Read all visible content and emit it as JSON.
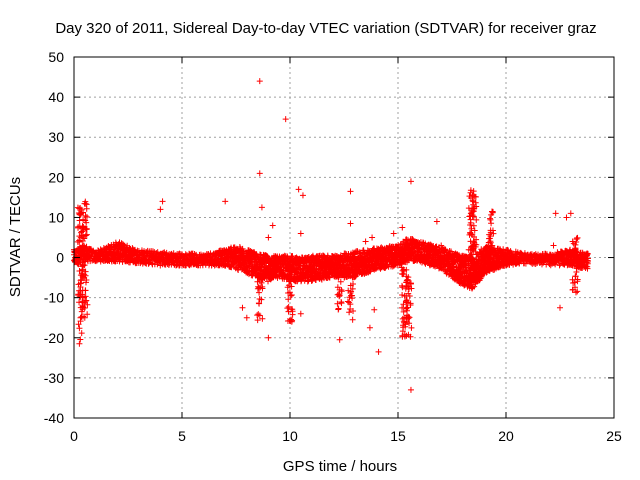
{
  "chart_data": {
    "type": "scatter",
    "title": "Day 320 of 2011, Sidereal Day-to-day VTEC variation (SDTVAR) for receiver graz",
    "xlabel": "GPS time / hours",
    "ylabel": "SDTVAR / TECUs",
    "xlim": [
      0,
      25
    ],
    "ylim": [
      -40,
      50
    ],
    "xticks": [
      0,
      5,
      10,
      15,
      20,
      25
    ],
    "yticks": [
      -40,
      -30,
      -20,
      -10,
      0,
      10,
      20,
      30,
      40,
      50
    ],
    "grid": true,
    "marker": "+",
    "color": "#ff0000",
    "band_envelope": {
      "x": [
        0.0,
        0.5,
        1.0,
        2.0,
        3.0,
        4.0,
        5.0,
        6.0,
        7.0,
        7.5,
        8.0,
        8.5,
        9.0,
        9.5,
        10.0,
        10.5,
        11.0,
        12.0,
        13.0,
        14.0,
        15.0,
        15.5,
        16.0,
        17.0,
        18.0,
        18.5,
        19.0,
        20.0,
        21.0,
        22.0,
        23.0,
        23.8
      ],
      "upper": [
        2.0,
        3.0,
        1.5,
        4.0,
        2.0,
        1.5,
        1.0,
        1.0,
        2.0,
        3.0,
        2.0,
        1.0,
        0.5,
        0.5,
        0.5,
        0.0,
        0.5,
        0.5,
        1.5,
        2.5,
        3.0,
        5.0,
        4.0,
        2.5,
        0.5,
        0.0,
        3.0,
        2.0,
        1.0,
        1.0,
        2.0,
        1.0
      ],
      "lower": [
        -2.0,
        -1.0,
        -1.0,
        -1.0,
        -1.5,
        -2.0,
        -2.0,
        -2.0,
        -2.0,
        -3.0,
        -4.0,
        -5.0,
        -6.0,
        -5.0,
        -6.0,
        -6.0,
        -6.0,
        -5.0,
        -5.0,
        -3.0,
        -2.0,
        -1.0,
        -1.0,
        -3.0,
        -7.0,
        -8.0,
        -4.0,
        -2.0,
        -1.5,
        -2.0,
        -2.0,
        -3.0
      ]
    },
    "spikes": [
      {
        "x": 0.3,
        "y_min": -21,
        "y_max": 13
      },
      {
        "x": 0.5,
        "y_min": -15,
        "y_max": 14
      },
      {
        "x": 8.6,
        "y_min": -16,
        "y_max": -4
      },
      {
        "x": 10.0,
        "y_min": -16,
        "y_max": -4
      },
      {
        "x": 12.3,
        "y_min": -13,
        "y_max": -3
      },
      {
        "x": 12.8,
        "y_min": -14,
        "y_max": -3
      },
      {
        "x": 15.3,
        "y_min": -20,
        "y_max": -2
      },
      {
        "x": 15.5,
        "y_min": -20,
        "y_max": -3
      },
      {
        "x": 18.4,
        "y_min": 0,
        "y_max": 17
      },
      {
        "x": 18.5,
        "y_min": 0,
        "y_max": 16
      },
      {
        "x": 19.3,
        "y_min": 0,
        "y_max": 13
      },
      {
        "x": 23.2,
        "y_min": -9,
        "y_max": 5
      }
    ],
    "outliers": [
      {
        "x": 8.6,
        "y": 44
      },
      {
        "x": 9.8,
        "y": 34.5
      },
      {
        "x": 8.6,
        "y": 21
      },
      {
        "x": 10.4,
        "y": 17
      },
      {
        "x": 10.6,
        "y": 15.5
      },
      {
        "x": 12.8,
        "y": 16.5
      },
      {
        "x": 15.6,
        "y": 19
      },
      {
        "x": 4.1,
        "y": 14
      },
      {
        "x": 4.0,
        "y": 12
      },
      {
        "x": 7.0,
        "y": 14
      },
      {
        "x": 8.7,
        "y": 12.5
      },
      {
        "x": 9.2,
        "y": 8
      },
      {
        "x": 9.0,
        "y": 5
      },
      {
        "x": 10.5,
        "y": 6
      },
      {
        "x": 12.8,
        "y": 8.5
      },
      {
        "x": 13.5,
        "y": 4
      },
      {
        "x": 13.8,
        "y": 5
      },
      {
        "x": 14.8,
        "y": 6
      },
      {
        "x": 15.2,
        "y": 7.5
      },
      {
        "x": 16.8,
        "y": 9
      },
      {
        "x": 22.3,
        "y": 11
      },
      {
        "x": 22.8,
        "y": 10
      },
      {
        "x": 23.0,
        "y": 11
      },
      {
        "x": 7.8,
        "y": -12.5
      },
      {
        "x": 8.0,
        "y": -15
      },
      {
        "x": 9.0,
        "y": -20
      },
      {
        "x": 10.5,
        "y": -14
      },
      {
        "x": 12.3,
        "y": -20.5
      },
      {
        "x": 12.9,
        "y": -15.5
      },
      {
        "x": 13.7,
        "y": -17.5
      },
      {
        "x": 13.9,
        "y": -13
      },
      {
        "x": 14.1,
        "y": -23.5
      },
      {
        "x": 15.6,
        "y": -33
      },
      {
        "x": 22.5,
        "y": -12.5
      },
      {
        "x": 0.5,
        "y": -15
      },
      {
        "x": 0.25,
        "y": -21.5
      },
      {
        "x": 23.1,
        "y": -8
      },
      {
        "x": 22.2,
        "y": 3
      },
      {
        "x": 5.5,
        "y": 1
      },
      {
        "x": 17.0,
        "y": 3
      }
    ]
  }
}
